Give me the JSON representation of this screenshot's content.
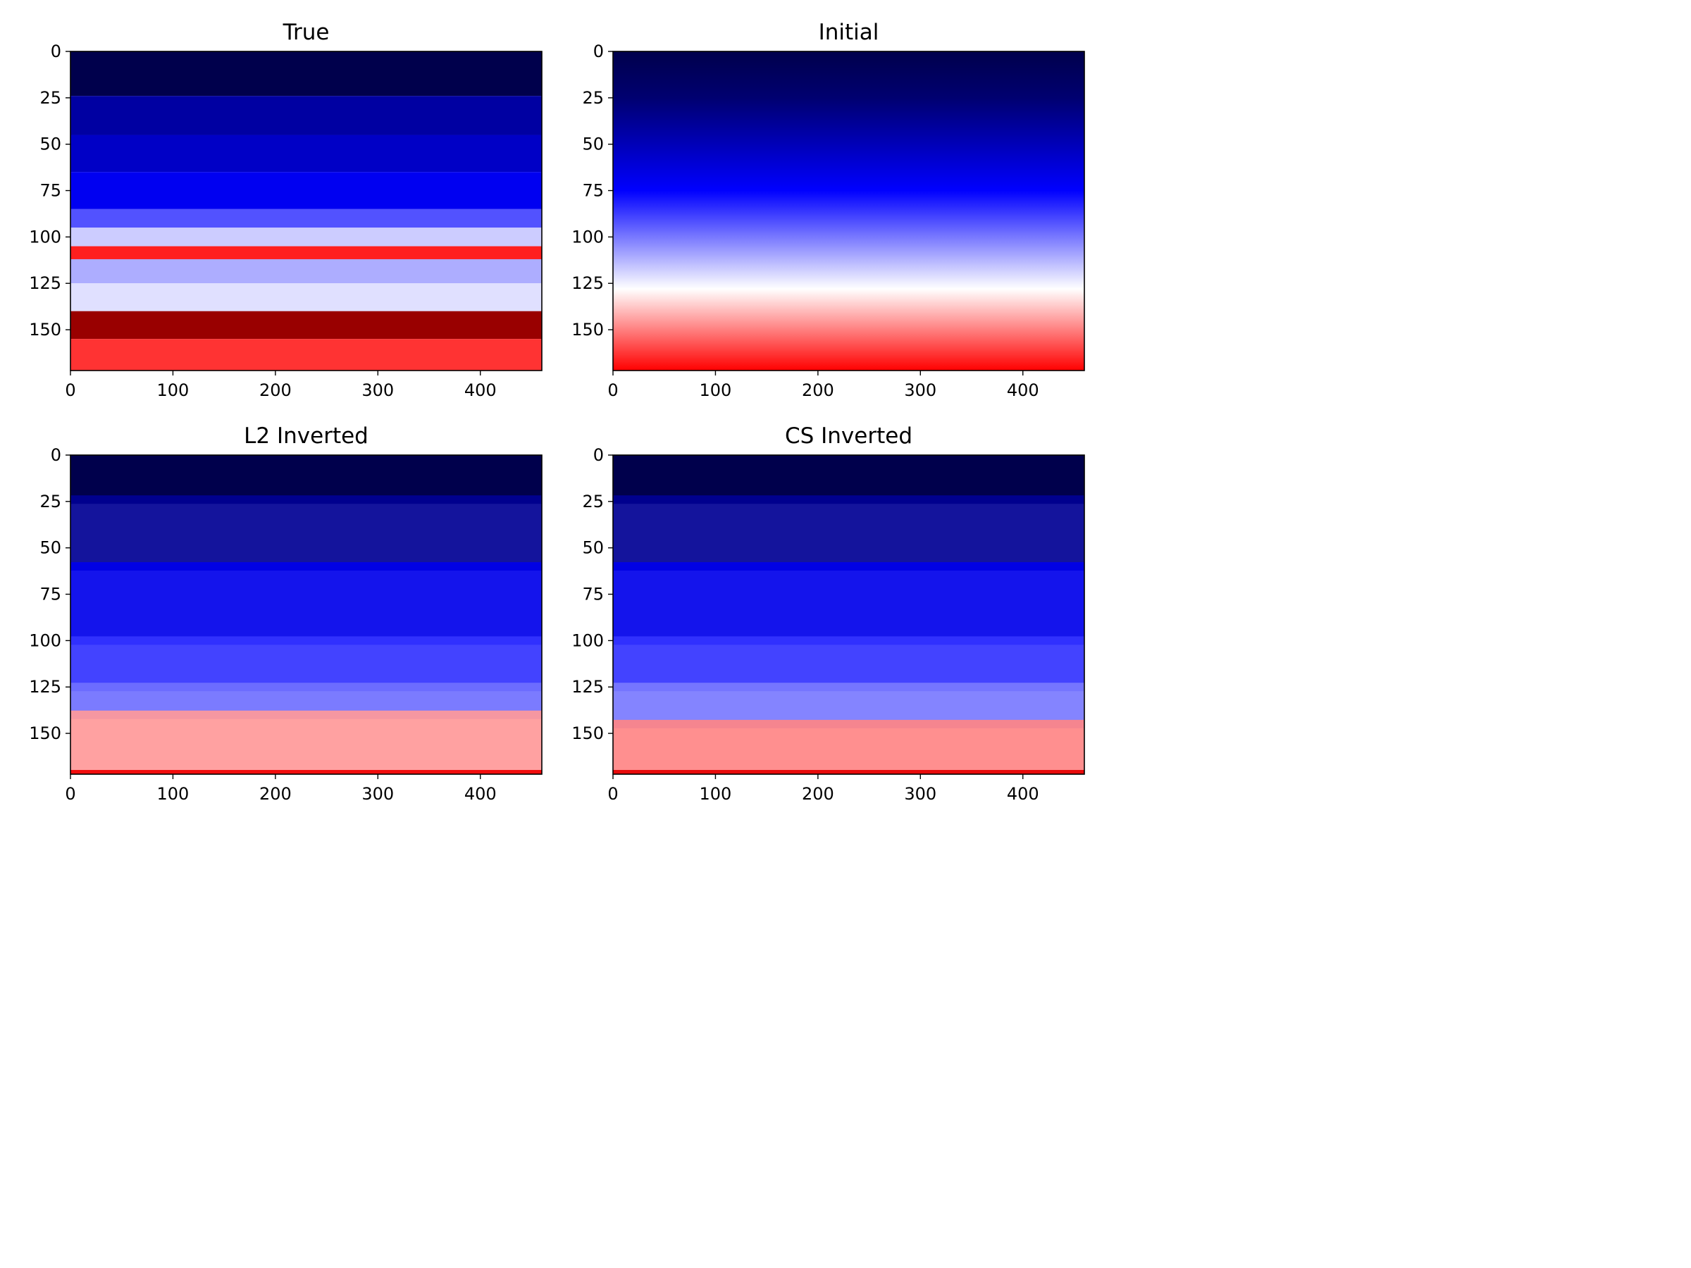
{
  "figure": {
    "colormap": "seismic",
    "colormap_stops": [
      "#00004c",
      "#0000ff",
      "#ffffff",
      "#ff0000",
      "#7f0000"
    ],
    "panel_background": "#ffffff"
  },
  "chart_data": [
    {
      "type": "heatmap",
      "title": "True",
      "xlim": [
        0,
        460
      ],
      "ylim": [
        172,
        0
      ],
      "xticks": [
        0,
        100,
        200,
        300,
        400
      ],
      "yticks": [
        0,
        25,
        50,
        75,
        100,
        125,
        150
      ],
      "structure": "sharp_layers",
      "layers": [
        {
          "depth": 0,
          "value": 0.0
        },
        {
          "depth": 24,
          "value": 0.12
        },
        {
          "depth": 45,
          "value": 0.17
        },
        {
          "depth": 65,
          "value": 0.23
        },
        {
          "depth": 85,
          "value": 0.33
        },
        {
          "depth": 95,
          "value": 0.45
        },
        {
          "depth": 105,
          "value": 0.72
        },
        {
          "depth": 112,
          "value": 0.42
        },
        {
          "depth": 125,
          "value": 0.47
        },
        {
          "depth": 140,
          "value": 0.95
        },
        {
          "depth": 155,
          "value": 0.7
        }
      ]
    },
    {
      "type": "heatmap",
      "title": "Initial",
      "xlim": [
        0,
        460
      ],
      "ylim": [
        172,
        0
      ],
      "xticks": [
        0,
        100,
        200,
        300,
        400
      ],
      "yticks": [
        0,
        25,
        50,
        75,
        100,
        125,
        150
      ],
      "structure": "linear_gradient",
      "gradient": [
        {
          "depth": 0,
          "value": 0.0
        },
        {
          "depth": 25,
          "value": 0.05
        },
        {
          "depth": 75,
          "value": 0.25
        },
        {
          "depth": 128,
          "value": 0.5
        },
        {
          "depth": 172,
          "value": 0.75
        }
      ]
    },
    {
      "type": "heatmap",
      "title": "L2 Inverted",
      "xlim": [
        0,
        460
      ],
      "ylim": [
        172,
        0
      ],
      "xticks": [
        0,
        100,
        200,
        300,
        400
      ],
      "yticks": [
        0,
        25,
        50,
        75,
        100,
        125,
        150
      ],
      "structure": "smooth_layers",
      "layers": [
        {
          "depth": 0,
          "value": 0.0
        },
        {
          "depth": 24,
          "value": 0.1
        },
        {
          "depth": 60,
          "value": 0.22
        },
        {
          "depth": 100,
          "value": 0.3
        },
        {
          "depth": 125,
          "value": 0.36
        },
        {
          "depth": 140,
          "value": 0.6
        },
        {
          "depth": 172,
          "value": 0.78
        }
      ]
    },
    {
      "type": "heatmap",
      "title": "CS Inverted",
      "xlim": [
        0,
        460
      ],
      "ylim": [
        172,
        0
      ],
      "xticks": [
        0,
        100,
        200,
        300,
        400
      ],
      "yticks": [
        0,
        25,
        50,
        75,
        100,
        125,
        150
      ],
      "structure": "smooth_layers",
      "layers": [
        {
          "depth": 0,
          "value": 0.0
        },
        {
          "depth": 24,
          "value": 0.1
        },
        {
          "depth": 60,
          "value": 0.22
        },
        {
          "depth": 100,
          "value": 0.3
        },
        {
          "depth": 125,
          "value": 0.37
        },
        {
          "depth": 145,
          "value": 0.62
        },
        {
          "depth": 172,
          "value": 0.8
        }
      ]
    }
  ]
}
